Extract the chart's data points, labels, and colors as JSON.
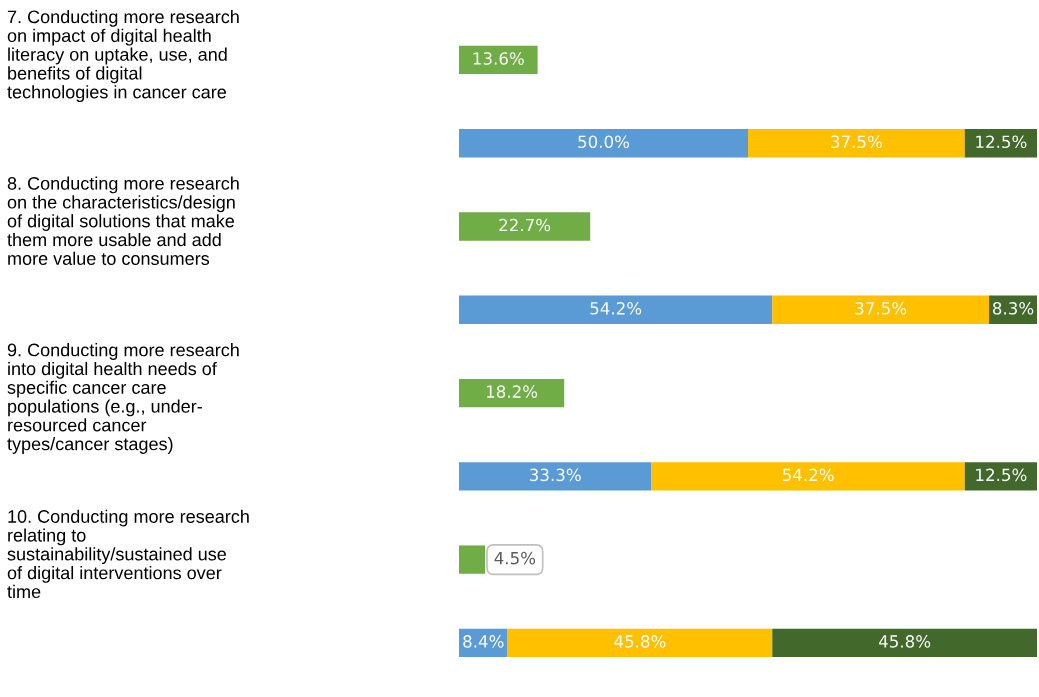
{
  "chart_data": {
    "type": "bar",
    "orientation": "horizontal",
    "stacked": true,
    "xlim": [
      0,
      100
    ],
    "tick_labels": "y",
    "categories": [
      "7. Conducting more research\non impact of digital health\nliteracy on uptake, use, and\nbenefits of digital\ntechnologies in cancer care",
      null,
      "8. Conducting more research\non the characteristics/design\nof digital solutions that make\nthem more usable and add\nmore value to consumers",
      null,
      "9. Conducting more research\ninto digital health needs of\nspecific cancer care\npopulations (e.g., under-\nresourced cancer\ntypes/cancer stages)",
      null,
      "10. Conducting more research\nrelating to\nsustainability/sustained use\nof digital interventions over\ntime",
      null
    ],
    "series": [
      {
        "color": "#70ad47",
        "values": [
          13.6,
          null,
          22.7,
          null,
          18.2,
          null,
          4.5,
          null
        ],
        "value_labels": [
          "13.6%",
          null,
          "22.7%",
          null,
          "18.2%",
          null,
          "4.5%",
          null
        ]
      },
      {
        "color": "#5b9bd5",
        "values": [
          null,
          50.0,
          null,
          54.2,
          null,
          33.3,
          null,
          8.4
        ],
        "value_labels": [
          null,
          "50.0%",
          null,
          "54.2%",
          null,
          "33.3%",
          null,
          "8.4%"
        ]
      },
      {
        "color": "#ffc000",
        "values": [
          null,
          37.5,
          null,
          37.5,
          null,
          54.2,
          null,
          45.8
        ],
        "value_labels": [
          null,
          "37.5%",
          null,
          "37.5%",
          null,
          "54.2%",
          null,
          "45.8%"
        ]
      },
      {
        "color": "#43682b",
        "values": [
          null,
          12.5,
          null,
          8.3,
          null,
          12.5,
          null,
          45.8
        ],
        "value_labels": [
          null,
          "12.5%",
          null,
          "8.3%",
          null,
          "12.5%",
          null,
          "45.8%"
        ]
      }
    ]
  }
}
